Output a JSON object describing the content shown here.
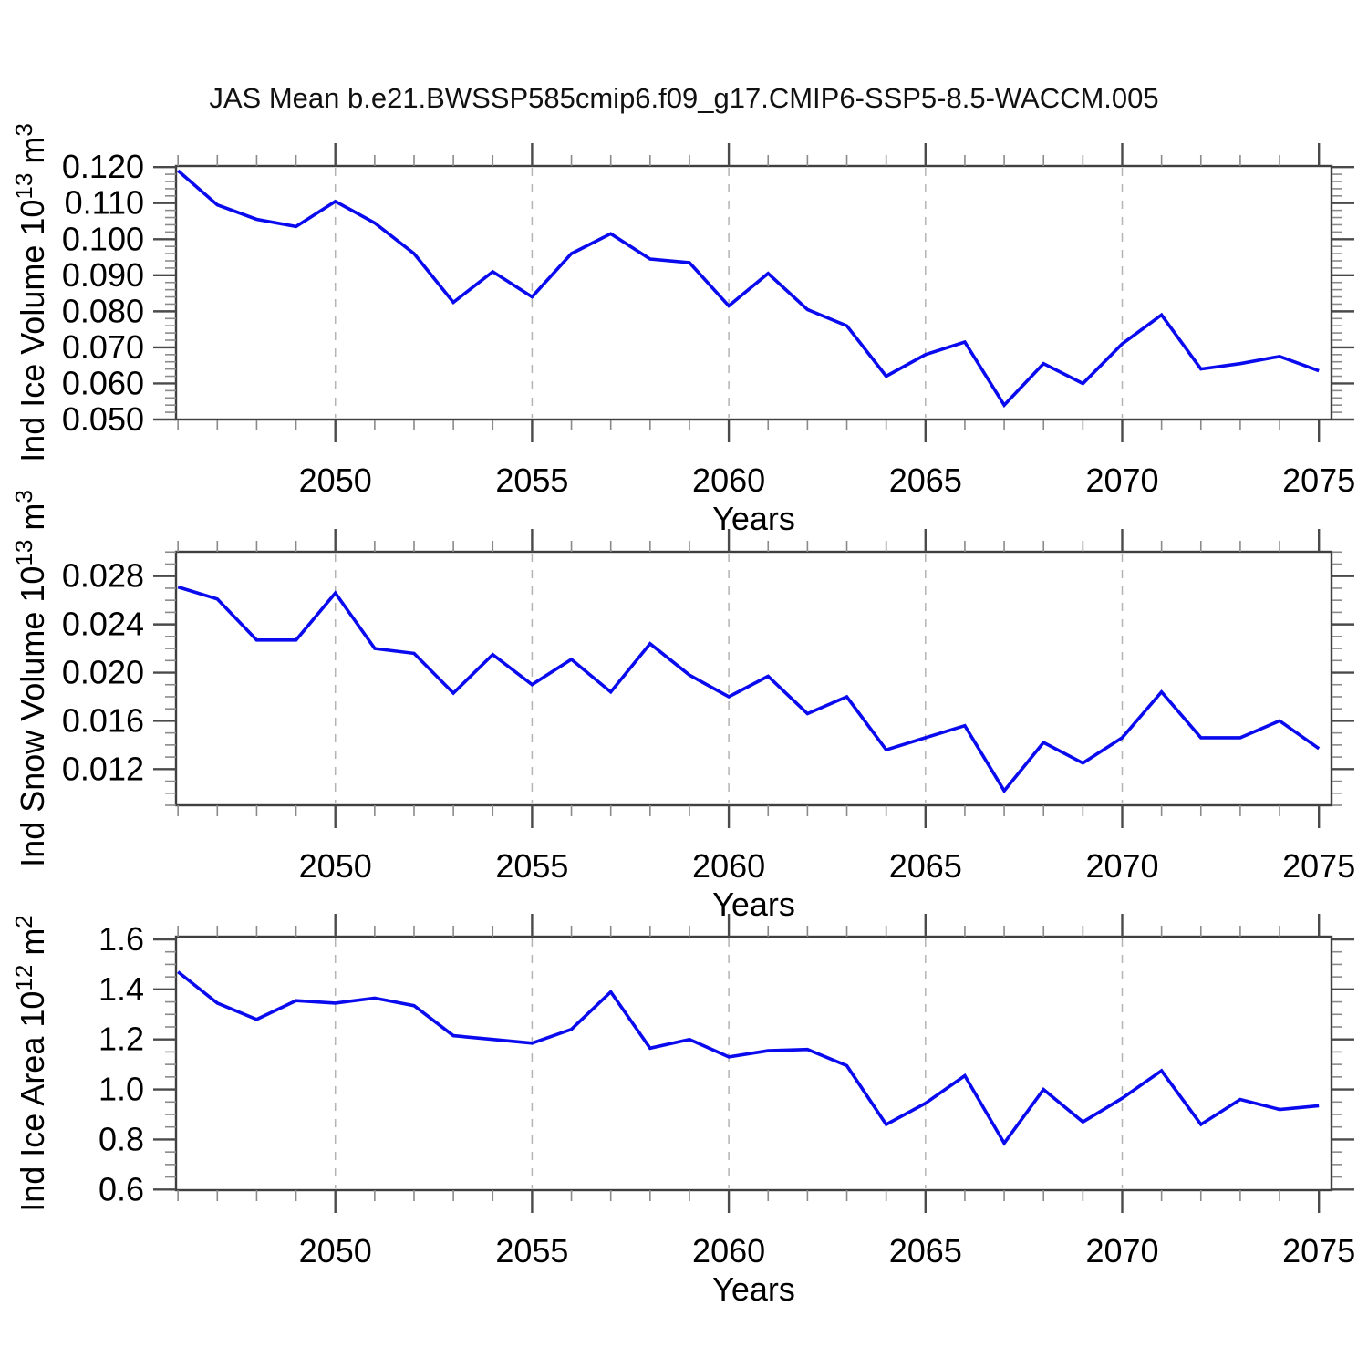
{
  "title": "JAS Mean b.e21.BWSSP585cmip6.f09_g17.CMIP6-SSP5-8.5-WACCM.005",
  "style": {
    "line_color": "#0a0aee",
    "grid_color": "#b4b4b4",
    "frame_color": "#3f3f3f",
    "major_tick_color": "#4a4a4a",
    "minor_tick_color": "#8a8a8a",
    "text_color": "#000000",
    "background": "#ffffff"
  },
  "x_axis": {
    "label": "Years",
    "major_tick_labels": [
      "2050",
      "2055",
      "2060",
      "2065",
      "2070",
      "2075"
    ],
    "major_tick_years": [
      2050,
      2055,
      2060,
      2065,
      2070,
      2075
    ],
    "minor_tick_step_years": 1,
    "grid_years": [
      2050,
      2055,
      2060,
      2065,
      2070
    ],
    "xlim": [
      2045.95,
      2075.32
    ]
  },
  "chart_data": [
    {
      "type": "line",
      "panel": "ice-volume",
      "title": "JAS Mean b.e21.BWSSP585cmip6.f09_g17.CMIP6-SSP5-8.5-WACCM.005",
      "xlabel": "Years",
      "ylabel": "Ind Ice Volume 10^13 m^3",
      "ylabel_rich": [
        {
          "t": "Ind Ice Volume 10"
        },
        {
          "t": "13",
          "sup": true
        },
        {
          "t": " m"
        },
        {
          "t": "3",
          "sup": true
        }
      ],
      "x": [
        2046,
        2047,
        2048,
        2049,
        2050,
        2051,
        2052,
        2053,
        2054,
        2055,
        2056,
        2057,
        2058,
        2059,
        2060,
        2061,
        2062,
        2063,
        2064,
        2065,
        2066,
        2067,
        2068,
        2069,
        2070,
        2071,
        2072,
        2073,
        2074,
        2075
      ],
      "series": [
        {
          "name": "Ind Ice Volume",
          "values": [
            0.119,
            0.1095,
            0.1055,
            0.1035,
            0.1105,
            0.1045,
            0.096,
            0.0825,
            0.091,
            0.084,
            0.096,
            0.1015,
            0.0945,
            0.0935,
            0.0815,
            0.0905,
            0.0805,
            0.076,
            0.062,
            0.068,
            0.0715,
            0.054,
            0.0655,
            0.06,
            0.071,
            0.079,
            0.064,
            0.0655,
            0.0675,
            0.0635
          ]
        }
      ],
      "ylim": [
        0.05,
        0.1203
      ],
      "yticks": [
        0.05,
        0.06,
        0.07,
        0.08,
        0.09,
        0.1,
        0.11,
        0.12
      ],
      "ytick_labels": [
        "0.050",
        "0.060",
        "0.070",
        "0.080",
        "0.090",
        "0.100",
        "0.110",
        "0.120"
      ],
      "minor_step": 0.002,
      "grid": true,
      "legend": "none"
    },
    {
      "type": "line",
      "panel": "snow-volume",
      "xlabel": "Years",
      "ylabel": "Ind Snow Volume 10^13 m^3",
      "ylabel_rich": [
        {
          "t": "Ind Snow Volume 10"
        },
        {
          "t": "13",
          "sup": true
        },
        {
          "t": " m"
        },
        {
          "t": "3",
          "sup": true
        }
      ],
      "x": [
        2046,
        2047,
        2048,
        2049,
        2050,
        2051,
        2052,
        2053,
        2054,
        2055,
        2056,
        2057,
        2058,
        2059,
        2060,
        2061,
        2062,
        2063,
        2064,
        2065,
        2066,
        2067,
        2068,
        2069,
        2070,
        2071,
        2072,
        2073,
        2074,
        2075
      ],
      "series": [
        {
          "name": "Ind Snow Volume",
          "values": [
            0.0271,
            0.0261,
            0.0227,
            0.0227,
            0.0266,
            0.022,
            0.0216,
            0.0183,
            0.0215,
            0.019,
            0.0211,
            0.0184,
            0.0224,
            0.0198,
            0.018,
            0.0197,
            0.0166,
            0.018,
            0.0136,
            0.0146,
            0.0156,
            0.0102,
            0.0142,
            0.0125,
            0.0146,
            0.0184,
            0.0146,
            0.0146,
            0.016,
            0.0137
          ]
        }
      ],
      "ylim": [
        0.009,
        0.03002
      ],
      "yticks": [
        0.012,
        0.016,
        0.02,
        0.024,
        0.028
      ],
      "ytick_labels": [
        "0.012",
        "0.016",
        "0.020",
        "0.024",
        "0.028"
      ],
      "minor_step": 0.001,
      "grid": true,
      "legend": "none"
    },
    {
      "type": "line",
      "panel": "ice-area",
      "xlabel": "Years",
      "ylabel": "Ind Ice Area 10^12 m^2",
      "ylabel_rich": [
        {
          "t": "Ind Ice Area 10"
        },
        {
          "t": "12",
          "sup": true
        },
        {
          "t": " m"
        },
        {
          "t": "2",
          "sup": true
        }
      ],
      "x": [
        2046,
        2047,
        2048,
        2049,
        2050,
        2051,
        2052,
        2053,
        2054,
        2055,
        2056,
        2057,
        2058,
        2059,
        2060,
        2061,
        2062,
        2063,
        2064,
        2065,
        2066,
        2067,
        2068,
        2069,
        2070,
        2071,
        2072,
        2073,
        2074,
        2075
      ],
      "series": [
        {
          "name": "Ind Ice Area",
          "values": [
            1.47,
            1.345,
            1.28,
            1.355,
            1.345,
            1.365,
            1.335,
            1.215,
            1.2,
            1.185,
            1.24,
            1.39,
            1.165,
            1.2,
            1.13,
            1.155,
            1.16,
            1.095,
            0.86,
            0.945,
            1.055,
            0.785,
            1.0,
            0.87,
            0.965,
            1.075,
            0.86,
            0.96,
            0.92,
            0.935
          ]
        }
      ],
      "ylim": [
        0.5974,
        1.6109
      ],
      "yticks": [
        0.6,
        0.8,
        1.0,
        1.2,
        1.4,
        1.6
      ],
      "ytick_labels": [
        "0.6",
        "0.8",
        "1.0",
        "1.2",
        "1.4",
        "1.6"
      ],
      "minor_step": 0.05,
      "grid": true,
      "legend": "none"
    }
  ]
}
